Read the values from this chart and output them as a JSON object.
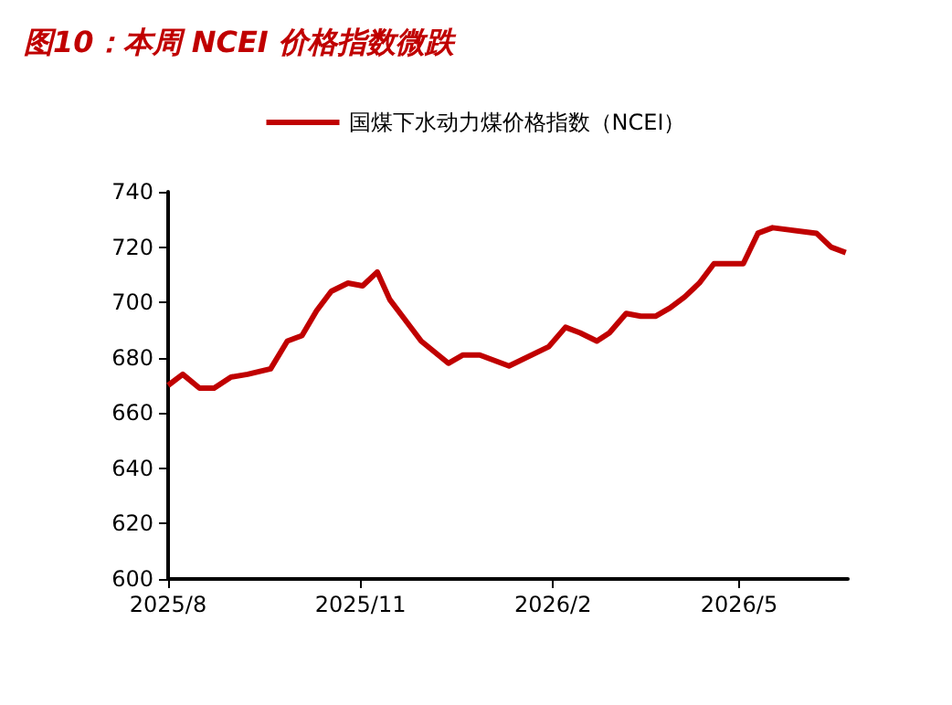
{
  "chart_data": {
    "type": "line",
    "title": "图10：本周 NCEI 价格指数微跌",
    "x": [
      "2025-08-01",
      "2025-08-08",
      "2025-08-16",
      "2025-08-23",
      "2025-08-31",
      "2025-09-08",
      "2025-09-19",
      "2025-09-27",
      "2025-10-04",
      "2025-10-11",
      "2025-10-18",
      "2025-10-26",
      "2025-11-02",
      "2025-11-09",
      "2025-11-15",
      "2025-11-22",
      "2025-11-30",
      "2025-12-13",
      "2025-12-20",
      "2025-12-28",
      "2026-01-04",
      "2026-01-11",
      "2026-01-30",
      "2026-02-07",
      "2026-02-14",
      "2026-02-22",
      "2026-02-28",
      "2026-03-08",
      "2026-03-15",
      "2026-03-22",
      "2026-03-29",
      "2026-04-05",
      "2026-04-12",
      "2026-04-19",
      "2026-05-03",
      "2026-05-10",
      "2026-05-17",
      "2026-06-07",
      "2026-06-14",
      "2026-06-21"
    ],
    "series": [
      {
        "name": "国煤下水动力煤价格指数（NCEI）",
        "color": "#c00000",
        "values": [
          670,
          674,
          669,
          669,
          673,
          674,
          676,
          686,
          688,
          697,
          704,
          707,
          706,
          711,
          701,
          694,
          686,
          678,
          681,
          681,
          679,
          677,
          684,
          691,
          689,
          686,
          689,
          696,
          695,
          695,
          698,
          702,
          707,
          714,
          714,
          725,
          727,
          725,
          720,
          718
        ]
      }
    ],
    "xlim": [
      "2025-08-01",
      "2026-06-22"
    ],
    "xticks": [
      {
        "value": "2025-08-01",
        "label": "2025/8"
      },
      {
        "value": "2025-11-01",
        "label": "2025/11"
      },
      {
        "value": "2026-02-01",
        "label": "2026/2"
      },
      {
        "value": "2026-05-01",
        "label": "2026/5"
      }
    ],
    "ylim": [
      600,
      740
    ],
    "yticks": [
      600,
      620,
      640,
      660,
      680,
      700,
      720,
      740
    ],
    "grid": false,
    "legend": "top",
    "marker": "none",
    "line_style": "solid"
  }
}
